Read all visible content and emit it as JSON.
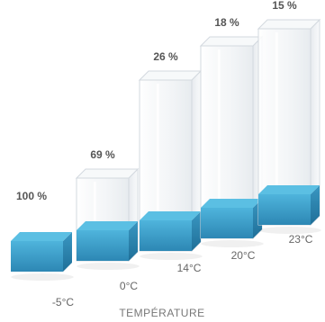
{
  "chart_data": {
    "type": "bar",
    "xlabel": "TEMPÉRATURE",
    "categories": [
      "-5°C",
      "0°C",
      "14°C",
      "20°C",
      "23°C"
    ],
    "value_labels": [
      "100 %",
      "69 %",
      "26 %",
      "18 %",
      "15 %"
    ],
    "values": [
      100,
      69,
      26,
      18,
      15
    ],
    "grid": false,
    "colors": {
      "fill": "#3a9fc9",
      "fill_top": "#5bbfe3",
      "glass": "#e9edf1"
    }
  }
}
